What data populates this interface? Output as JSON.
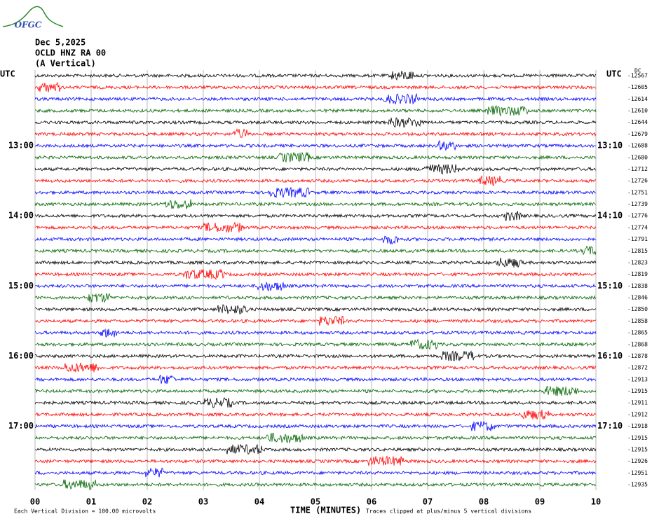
{
  "chart_data": {
    "type": "helicorder",
    "logo_text": "OFGC",
    "title_lines": [
      "Dec 5,2025",
      "OCLD HNZ RA 00",
      "(A Vertical)"
    ],
    "left_axis_label": "UTC",
    "right_axis_label": "UTC",
    "offset_header": "DC",
    "row_left_labels": [
      null,
      null,
      null,
      null,
      null,
      null,
      "13:00",
      null,
      null,
      null,
      null,
      null,
      "14:00",
      null,
      null,
      null,
      null,
      null,
      "15:00",
      null,
      null,
      null,
      null,
      null,
      "16:00",
      null,
      null,
      null,
      null,
      null,
      "17:00",
      null,
      null,
      null,
      null,
      null
    ],
    "row_right_labels": [
      null,
      null,
      null,
      null,
      null,
      null,
      "13:10",
      null,
      null,
      null,
      null,
      null,
      "14:10",
      null,
      null,
      null,
      null,
      null,
      "15:10",
      null,
      null,
      null,
      null,
      null,
      "16:10",
      null,
      null,
      null,
      null,
      null,
      "17:10",
      null,
      null,
      null,
      null,
      null
    ],
    "row_offsets": [
      -12567,
      -12605,
      -12614,
      -12610,
      -12644,
      -12679,
      -12688,
      -12680,
      -12712,
      -12726,
      -12751,
      -12739,
      -12776,
      -12774,
      -12791,
      -12815,
      -12823,
      -12819,
      -12838,
      -12846,
      -12850,
      -12858,
      -12865,
      -12868,
      -12878,
      -12872,
      -12913,
      -12915,
      -12911,
      -12912,
      -12918,
      -12915,
      -12915,
      -12926,
      -12951,
      -12935
    ],
    "trace_colors": [
      "#000000",
      "#ff0000",
      "#0000ff",
      "#006400"
    ],
    "xlabel": "TIME (MINUTES)",
    "xlim": [
      0,
      10
    ],
    "xticks": [
      {
        "value": 0,
        "label": "00"
      },
      {
        "value": 1,
        "label": "01"
      },
      {
        "value": 2,
        "label": "02"
      },
      {
        "value": 3,
        "label": "03"
      },
      {
        "value": 4,
        "label": "04"
      },
      {
        "value": 5,
        "label": "05"
      },
      {
        "value": 6,
        "label": "06"
      },
      {
        "value": 7,
        "label": "07"
      },
      {
        "value": 8,
        "label": "08"
      },
      {
        "value": 9,
        "label": "09"
      },
      {
        "value": 10,
        "label": "10"
      }
    ],
    "grid": true,
    "footnote_left": "Each Vertical Division =  100.00 microvolts",
    "footnote_right": "Traces clipped at plus/minus 5 vertical divisions"
  }
}
